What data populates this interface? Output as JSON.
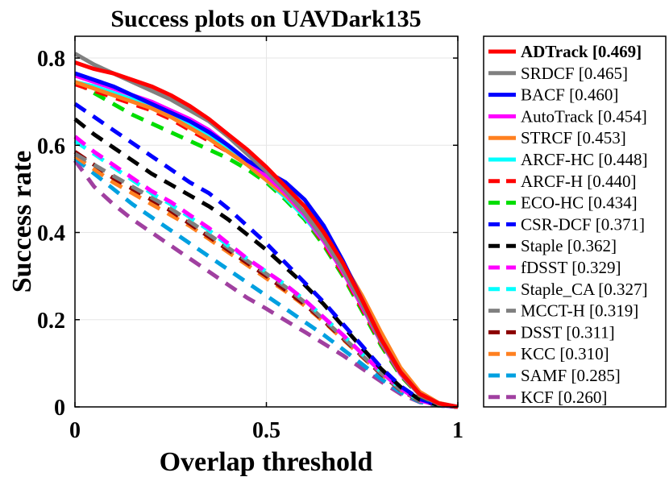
{
  "chart_data": {
    "type": "line",
    "title": "Success plots on UAVDark135",
    "xlabel": "Overlap threshold",
    "ylabel": "Success rate",
    "xlim": [
      0,
      1
    ],
    "ylim": [
      0,
      0.85
    ],
    "xticks": [
      0,
      0.5,
      1
    ],
    "xtick_labels": [
      "0",
      "0.5",
      "1"
    ],
    "yticks": [
      0,
      0.2,
      0.4,
      0.6,
      0.8
    ],
    "ytick_labels": [
      "0",
      "0.2",
      "0.4",
      "0.6",
      "0.8"
    ],
    "grid": true,
    "legend_position": "outside-right",
    "x": [
      0,
      0.05,
      0.1,
      0.15,
      0.2,
      0.25,
      0.3,
      0.35,
      0.4,
      0.45,
      0.5,
      0.55,
      0.6,
      0.65,
      0.7,
      0.75,
      0.8,
      0.85,
      0.9,
      0.95,
      1
    ],
    "series": [
      {
        "name": "ADTrack [0.469]",
        "color": "#ff0000",
        "style": "solid",
        "bold": true,
        "values": [
          0.79,
          0.775,
          0.765,
          0.75,
          0.735,
          0.715,
          0.69,
          0.66,
          0.625,
          0.59,
          0.55,
          0.505,
          0.46,
          0.4,
          0.33,
          0.245,
          0.155,
          0.08,
          0.03,
          0.008,
          0
        ]
      },
      {
        "name": "SRDCF [0.465]",
        "color": "#808080",
        "style": "solid",
        "bold": false,
        "values": [
          0.81,
          0.785,
          0.765,
          0.745,
          0.725,
          0.705,
          0.68,
          0.655,
          0.62,
          0.58,
          0.54,
          0.495,
          0.445,
          0.385,
          0.315,
          0.235,
          0.15,
          0.078,
          0.028,
          0.007,
          0
        ]
      },
      {
        "name": "BACF [0.460]",
        "color": "#0000ff",
        "style": "solid",
        "bold": false,
        "values": [
          0.765,
          0.75,
          0.735,
          0.715,
          0.695,
          0.675,
          0.655,
          0.63,
          0.6,
          0.565,
          0.54,
          0.515,
          0.475,
          0.415,
          0.335,
          0.245,
          0.155,
          0.08,
          0.03,
          0.008,
          0
        ]
      },
      {
        "name": "AutoTrack [0.454]",
        "color": "#ff00ff",
        "style": "solid",
        "bold": false,
        "values": [
          0.76,
          0.745,
          0.73,
          0.715,
          0.7,
          0.68,
          0.66,
          0.635,
          0.6,
          0.565,
          0.53,
          0.49,
          0.44,
          0.38,
          0.31,
          0.23,
          0.148,
          0.076,
          0.028,
          0.007,
          0
        ]
      },
      {
        "name": "STRCF [0.453]",
        "color": "#ff8020",
        "style": "solid",
        "bold": false,
        "values": [
          0.745,
          0.73,
          0.715,
          0.7,
          0.685,
          0.665,
          0.64,
          0.615,
          0.585,
          0.555,
          0.52,
          0.485,
          0.44,
          0.39,
          0.33,
          0.255,
          0.17,
          0.09,
          0.035,
          0.009,
          0
        ]
      },
      {
        "name": "ARCF-HC [0.448]",
        "color": "#00ffff",
        "style": "solid",
        "bold": false,
        "values": [
          0.745,
          0.735,
          0.72,
          0.705,
          0.69,
          0.67,
          0.645,
          0.62,
          0.59,
          0.555,
          0.52,
          0.48,
          0.435,
          0.38,
          0.31,
          0.23,
          0.148,
          0.077,
          0.028,
          0.007,
          0
        ]
      },
      {
        "name": "ARCF-H [0.440]",
        "color": "#ff0000",
        "style": "dashed",
        "bold": false,
        "values": [
          0.74,
          0.725,
          0.71,
          0.695,
          0.68,
          0.66,
          0.635,
          0.61,
          0.585,
          0.555,
          0.52,
          0.48,
          0.435,
          0.375,
          0.305,
          0.225,
          0.145,
          0.075,
          0.027,
          0.007,
          0
        ]
      },
      {
        "name": "ECO-HC [0.434]",
        "color": "#00dd00",
        "style": "dashed",
        "bold": false,
        "values": [
          0.745,
          0.72,
          0.695,
          0.67,
          0.65,
          0.63,
          0.61,
          0.59,
          0.57,
          0.545,
          0.515,
          0.475,
          0.43,
          0.37,
          0.3,
          0.22,
          0.14,
          0.072,
          0.026,
          0.006,
          0
        ]
      },
      {
        "name": "CSR-DCF [0.371]",
        "color": "#0000ff",
        "style": "dashed",
        "bold": false,
        "values": [
          0.695,
          0.665,
          0.635,
          0.605,
          0.575,
          0.545,
          0.515,
          0.49,
          0.455,
          0.415,
          0.375,
          0.33,
          0.285,
          0.24,
          0.19,
          0.14,
          0.09,
          0.048,
          0.018,
          0.005,
          0
        ]
      },
      {
        "name": "Staple [0.362]",
        "color": "#000000",
        "style": "dashed",
        "bold": false,
        "values": [
          0.66,
          0.625,
          0.595,
          0.565,
          0.535,
          0.51,
          0.485,
          0.46,
          0.43,
          0.395,
          0.36,
          0.32,
          0.28,
          0.235,
          0.185,
          0.135,
          0.087,
          0.046,
          0.017,
          0.004,
          0
        ]
      },
      {
        "name": "fDSST [0.329]",
        "color": "#ff00ff",
        "style": "dashed",
        "bold": false,
        "values": [
          0.62,
          0.585,
          0.555,
          0.525,
          0.495,
          0.47,
          0.44,
          0.41,
          0.375,
          0.34,
          0.31,
          0.28,
          0.245,
          0.205,
          0.165,
          0.122,
          0.08,
          0.042,
          0.015,
          0.004,
          0
        ]
      },
      {
        "name": "Staple_CA [0.327]",
        "color": "#00ffff",
        "style": "dashed",
        "bold": false,
        "values": [
          0.61,
          0.58,
          0.55,
          0.52,
          0.49,
          0.465,
          0.435,
          0.405,
          0.37,
          0.34,
          0.31,
          0.28,
          0.245,
          0.205,
          0.165,
          0.122,
          0.08,
          0.042,
          0.015,
          0.004,
          0
        ]
      },
      {
        "name": "MCCT-H [0.319]",
        "color": "#808080",
        "style": "dashed",
        "bold": false,
        "values": [
          0.58,
          0.555,
          0.53,
          0.505,
          0.48,
          0.455,
          0.425,
          0.395,
          0.365,
          0.335,
          0.305,
          0.275,
          0.24,
          0.2,
          0.16,
          0.118,
          0.077,
          0.04,
          0.015,
          0.004,
          0
        ]
      },
      {
        "name": "DSST [0.311]",
        "color": "#8b0000",
        "style": "dashed",
        "bold": false,
        "values": [
          0.585,
          0.555,
          0.525,
          0.5,
          0.475,
          0.45,
          0.42,
          0.39,
          0.36,
          0.33,
          0.3,
          0.268,
          0.235,
          0.197,
          0.157,
          0.116,
          0.075,
          0.039,
          0.014,
          0.004,
          0
        ]
      },
      {
        "name": "KCC [0.310]",
        "color": "#ff8020",
        "style": "dashed",
        "bold": false,
        "values": [
          0.575,
          0.545,
          0.515,
          0.49,
          0.465,
          0.44,
          0.415,
          0.385,
          0.355,
          0.325,
          0.295,
          0.265,
          0.232,
          0.195,
          0.155,
          0.115,
          0.075,
          0.039,
          0.014,
          0.004,
          0
        ]
      },
      {
        "name": "SAMF [0.285]",
        "color": "#00a0e0",
        "style": "dashed",
        "bold": false,
        "values": [
          0.57,
          0.535,
          0.5,
          0.465,
          0.435,
          0.405,
          0.375,
          0.345,
          0.315,
          0.285,
          0.255,
          0.225,
          0.195,
          0.165,
          0.132,
          0.098,
          0.064,
          0.034,
          0.012,
          0.003,
          0
        ]
      },
      {
        "name": "KCF [0.260]",
        "color": "#a040a0",
        "style": "dashed",
        "bold": false,
        "values": [
          0.565,
          0.505,
          0.465,
          0.43,
          0.4,
          0.37,
          0.34,
          0.31,
          0.28,
          0.25,
          0.225,
          0.198,
          0.172,
          0.145,
          0.118,
          0.088,
          0.058,
          0.03,
          0.011,
          0.003,
          0
        ]
      }
    ]
  }
}
